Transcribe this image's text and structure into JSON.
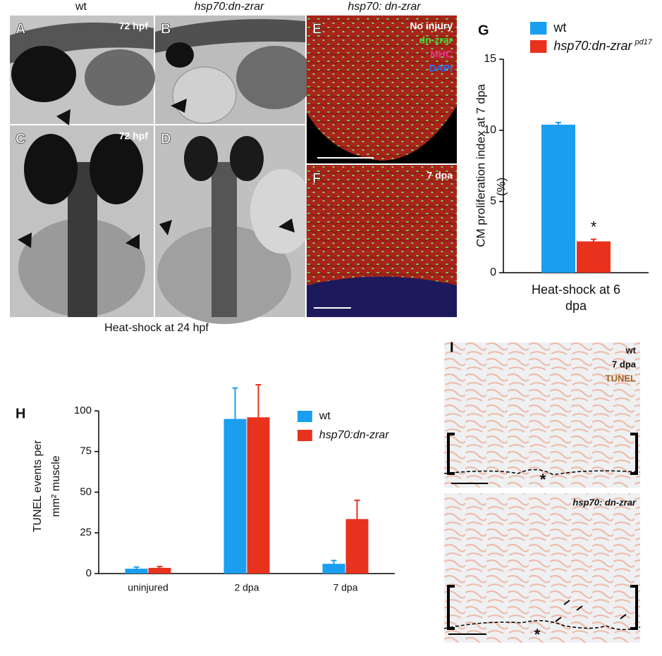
{
  "header": {
    "columns": [
      "wt",
      "hsp70:dn-zrar",
      "hsp70: dn-zrar"
    ],
    "caption": "Heat-shock at 24 hpf"
  },
  "image_panels": [
    {
      "letter": "A",
      "texts": [
        "72 hpf"
      ]
    },
    {
      "letter": "B"
    },
    {
      "letter": "C",
      "texts": [
        "72 hpf"
      ]
    },
    {
      "letter": "D"
    },
    {
      "letter": "E",
      "texts": [
        "No injury",
        "dn-zrar",
        "MHC",
        "DAPI"
      ]
    },
    {
      "letter": "F",
      "texts": [
        "7 dpa"
      ]
    },
    {
      "letter": "I",
      "texts": [
        "wt",
        "7 dpa",
        "TUNEL",
        "*"
      ]
    },
    {
      "texts": [
        "hsp70: dn-zrar",
        "*"
      ]
    }
  ],
  "chart_data": [
    {
      "type": "bar",
      "panel": "G",
      "ylabel": [
        "CM proliferation index at 7 dpa",
        "(%)"
      ],
      "categories": [
        "Heat-shock at 6 dpa"
      ],
      "series": [
        {
          "name": "wt",
          "color": "#1a9ef0",
          "values": [
            10.4
          ],
          "errors": [
            0.15
          ]
        },
        {
          "name": "hsp70:dn-zrar",
          "name_superscript": "pd17",
          "color": "#e8321e",
          "values": [
            2.2
          ],
          "errors": [
            0.15
          ]
        }
      ],
      "annotation": "*",
      "ylim": [
        0,
        15
      ],
      "yticks": [
        0,
        5,
        10,
        15
      ],
      "legend": "top"
    },
    {
      "type": "bar",
      "panel": "H",
      "ylabel": [
        "TUNEL events per",
        "mm² muscle"
      ],
      "categories": [
        "uninjured",
        "2 dpa",
        "7 dpa"
      ],
      "series": [
        {
          "name": "wt",
          "color": "#1a9ef0",
          "values": [
            3,
            95,
            6
          ],
          "errors": [
            1,
            19,
            2
          ]
        },
        {
          "name": "hsp70:dn-zrar",
          "color": "#e8321e",
          "values": [
            3.5,
            96,
            33.5
          ],
          "errors": [
            0.8,
            20,
            11.5
          ]
        }
      ],
      "ylim": [
        0,
        100
      ],
      "yticks": [
        0,
        25,
        50,
        75,
        100
      ],
      "legend": "upper right"
    }
  ]
}
